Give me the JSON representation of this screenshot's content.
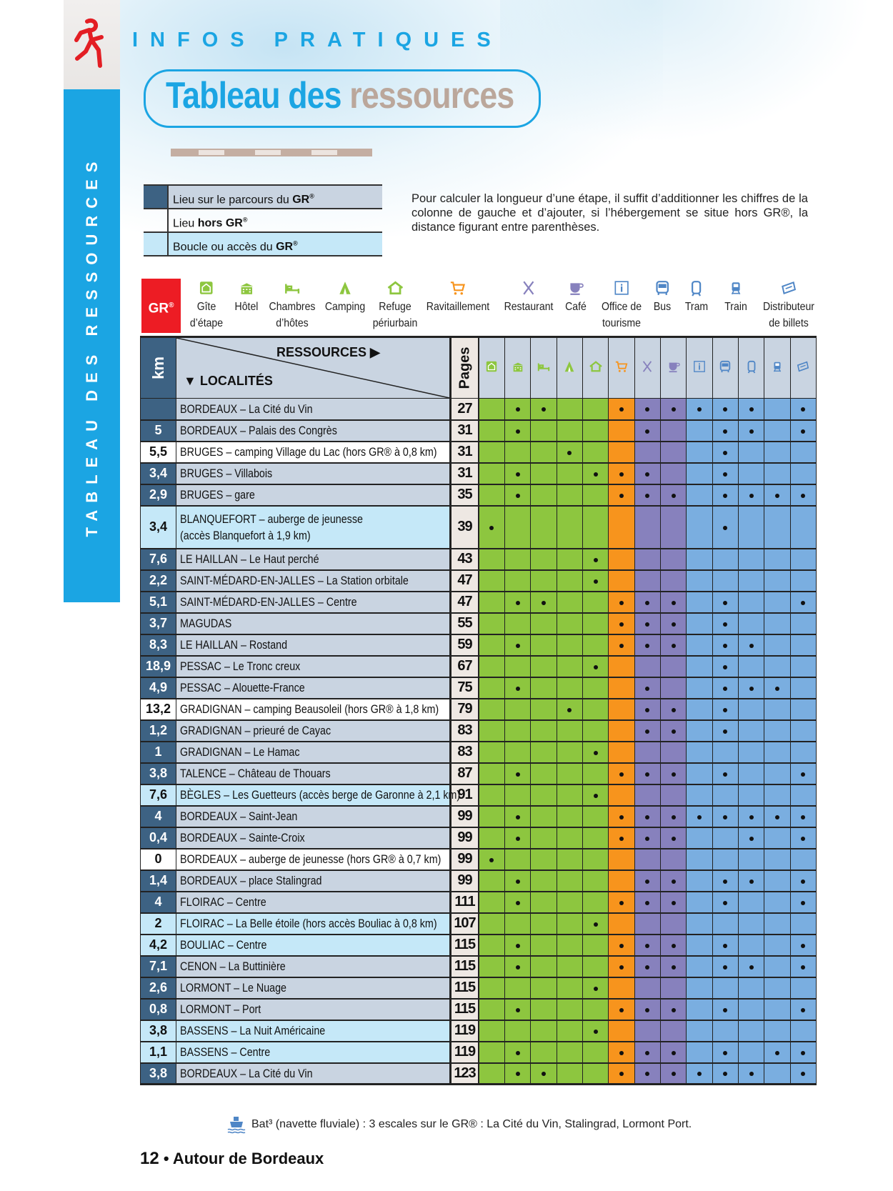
{
  "sidebar": {
    "label": "TABLEAU DES RESSOURCES",
    "logo_icon": "walker-icon"
  },
  "header": {
    "kicker": "INFOS PRATIQUES",
    "title_part1": "Tableau des",
    "title_part2": "ressources"
  },
  "legend": [
    {
      "type": "on",
      "text": "Lieu sur le parcours du ",
      "bold": "GR",
      "sup": "®"
    },
    {
      "type": "hors",
      "text": "Lieu ",
      "bold": "hors GR",
      "sup": "®"
    },
    {
      "type": "acces",
      "text": "Boucle ou accès du ",
      "bold": "GR",
      "sup": "®"
    }
  ],
  "intro": "Pour calculer la longueur d’une étape, il suffit d’additionner les chiffres de la colonne de gauche et d’ajouter, si l’hébergement se situe hors GR®, la distance figurant entre parenthèses.",
  "gr_badge": {
    "text": "GR",
    "sup": "®"
  },
  "resources": [
    {
      "label": "Gîte\nd’étape",
      "icon": "gite-icon",
      "color": "#8dc63f"
    },
    {
      "label": "Hôtel",
      "icon": "hotel-icon",
      "color": "#8dc63f"
    },
    {
      "label": "Chambres\nd’hôtes",
      "icon": "bed-icon",
      "color": "#8dc63f"
    },
    {
      "label": "Camping",
      "icon": "tent-icon",
      "color": "#8dc63f"
    },
    {
      "label": "Refuge\npériurbain",
      "icon": "refuge-icon",
      "color": "#8dc63f"
    },
    {
      "label": "Ravitaillement",
      "icon": "cart-icon",
      "color": "#f7941d"
    },
    {
      "label": "Restaurant",
      "icon": "cutlery-icon",
      "color": "#8781bd"
    },
    {
      "label": "Café",
      "icon": "cup-icon",
      "color": "#8781bd"
    },
    {
      "label": "Office de\ntourisme",
      "icon": "info-icon",
      "color": "#4f86c6"
    },
    {
      "label": "Bus",
      "icon": "bus-icon",
      "color": "#4f86c6"
    },
    {
      "label": "Tram",
      "icon": "tram-icon",
      "color": "#4f86c6"
    },
    {
      "label": "Train",
      "icon": "train-icon",
      "color": "#4f86c6"
    },
    {
      "label": "Distributeur\nde billets",
      "icon": "ticket-icon",
      "color": "#4f86c6"
    }
  ],
  "column_colors": [
    "#8dc63f",
    "#8dc63f",
    "#8dc63f",
    "#8dc63f",
    "#8dc63f",
    "#f7941d",
    "#8781bd",
    "#8781bd",
    "#7aaee0",
    "#7aaee0",
    "#7aaee0",
    "#7aaee0",
    "#7aaee0"
  ],
  "table": {
    "km_header": "km",
    "ressources_header": "RESSOURCES",
    "localites_header": "LOCALITÉS",
    "pages_header": "Pages",
    "rows": [
      {
        "km": "",
        "name": "BORDEAUX – La Cité du Vin",
        "page": "27",
        "type": "gr",
        "res": [
          0,
          1,
          1,
          0,
          0,
          1,
          1,
          1,
          1,
          1,
          1,
          0,
          1
        ]
      },
      {
        "km": "5",
        "name": "BORDEAUX – Palais des Congrès",
        "page": "31",
        "type": "gr",
        "res": [
          0,
          1,
          0,
          0,
          0,
          0,
          1,
          0,
          0,
          1,
          1,
          0,
          1
        ]
      },
      {
        "km": "5,5",
        "name": "BRUGES – camping Village du Lac (hors GR® à 0,8 km)",
        "page": "31",
        "type": "hors",
        "res": [
          0,
          0,
          0,
          1,
          0,
          0,
          0,
          0,
          0,
          1,
          0,
          0,
          0
        ]
      },
      {
        "km": "3,4",
        "name": "BRUGES – Villabois",
        "page": "31",
        "type": "gr",
        "res": [
          0,
          1,
          0,
          0,
          1,
          1,
          1,
          0,
          0,
          1,
          0,
          0,
          0
        ]
      },
      {
        "km": "2,9",
        "name": "BRUGES – gare",
        "page": "35",
        "type": "gr",
        "res": [
          0,
          1,
          0,
          0,
          0,
          1,
          1,
          1,
          0,
          1,
          1,
          1,
          1
        ]
      },
      {
        "km": "3,4",
        "name": "BLANQUEFORT – auberge de jeunesse\n(accès Blanquefort à 1,9 km)",
        "page": "39",
        "type": "acces",
        "res": [
          1,
          0,
          0,
          0,
          0,
          0,
          0,
          0,
          0,
          1,
          0,
          0,
          0
        ]
      },
      {
        "km": "7,6",
        "name": "LE HAILLAN – Le Haut perché",
        "page": "43",
        "type": "gr",
        "res": [
          0,
          0,
          0,
          0,
          1,
          0,
          0,
          0,
          0,
          0,
          0,
          0,
          0
        ]
      },
      {
        "km": "2,2",
        "name": "SAINT-MÉDARD-EN-JALLES – La Station orbitale",
        "page": "47",
        "type": "gr",
        "res": [
          0,
          0,
          0,
          0,
          1,
          0,
          0,
          0,
          0,
          0,
          0,
          0,
          0
        ]
      },
      {
        "km": "5,1",
        "name": "SAINT-MÉDARD-EN-JALLES – Centre",
        "page": "47",
        "type": "gr",
        "res": [
          0,
          1,
          1,
          0,
          0,
          1,
          1,
          1,
          0,
          1,
          0,
          0,
          1
        ]
      },
      {
        "km": "3,7",
        "name": "MAGUDAS",
        "page": "55",
        "type": "gr",
        "res": [
          0,
          0,
          0,
          0,
          0,
          1,
          1,
          1,
          0,
          1,
          0,
          0,
          0
        ]
      },
      {
        "km": "8,3",
        "name": "LE HAILLAN – Rostand",
        "page": "59",
        "type": "gr",
        "res": [
          0,
          1,
          0,
          0,
          0,
          1,
          1,
          1,
          0,
          1,
          1,
          0,
          0
        ]
      },
      {
        "km": "18,9",
        "name": "PESSAC – Le Tronc creux",
        "page": "67",
        "type": "gr",
        "res": [
          0,
          0,
          0,
          0,
          1,
          0,
          0,
          0,
          0,
          1,
          0,
          0,
          0
        ]
      },
      {
        "km": "4,9",
        "name": "PESSAC – Alouette-France",
        "page": "75",
        "type": "gr",
        "res": [
          0,
          1,
          0,
          0,
          0,
          0,
          1,
          0,
          0,
          1,
          1,
          1,
          0
        ]
      },
      {
        "km": "13,2",
        "name": "GRADIGNAN – camping Beausoleil (hors GR® à 1,8 km)",
        "page": "79",
        "type": "hors",
        "res": [
          0,
          0,
          0,
          1,
          0,
          0,
          1,
          1,
          0,
          1,
          0,
          0,
          0
        ]
      },
      {
        "km": "1,2",
        "name": "GRADIGNAN – prieuré de Cayac",
        "page": "83",
        "type": "gr",
        "res": [
          0,
          0,
          0,
          0,
          0,
          0,
          1,
          1,
          0,
          1,
          0,
          0,
          0
        ]
      },
      {
        "km": "1",
        "name": "GRADIGNAN – Le Hamac",
        "page": "83",
        "type": "gr",
        "res": [
          0,
          0,
          0,
          0,
          1,
          0,
          0,
          0,
          0,
          0,
          0,
          0,
          0
        ]
      },
      {
        "km": "3,8",
        "name": "TALENCE – Château de Thouars",
        "page": "87",
        "type": "gr",
        "res": [
          0,
          1,
          0,
          0,
          0,
          1,
          1,
          1,
          0,
          1,
          0,
          0,
          1
        ]
      },
      {
        "km": "7,6",
        "name": "BÈGLES – Les Guetteurs (accès berge de Garonne à 2,1 km)",
        "page": "91",
        "type": "acces",
        "res": [
          0,
          0,
          0,
          0,
          1,
          0,
          0,
          0,
          0,
          0,
          0,
          0,
          0
        ]
      },
      {
        "km": "4",
        "name": "BORDEAUX – Saint-Jean",
        "page": "99",
        "type": "gr",
        "res": [
          0,
          1,
          0,
          0,
          0,
          1,
          1,
          1,
          1,
          1,
          1,
          1,
          1
        ]
      },
      {
        "km": "0,4",
        "name": "BORDEAUX – Sainte-Croix",
        "page": "99",
        "type": "gr",
        "res": [
          0,
          1,
          0,
          0,
          0,
          1,
          1,
          1,
          0,
          0,
          1,
          0,
          1
        ]
      },
      {
        "km": "0",
        "name": "BORDEAUX – auberge de jeunesse (hors GR® à 0,7 km)",
        "page": "99",
        "type": "hors",
        "res": [
          1,
          0,
          0,
          0,
          0,
          0,
          0,
          0,
          0,
          0,
          0,
          0,
          0
        ]
      },
      {
        "km": "1,4",
        "name": "BORDEAUX – place Stalingrad",
        "page": "99",
        "type": "gr",
        "res": [
          0,
          1,
          0,
          0,
          0,
          0,
          1,
          1,
          0,
          1,
          1,
          0,
          1
        ]
      },
      {
        "km": "4",
        "name": "FLOIRAC – Centre",
        "page": "111",
        "type": "gr",
        "res": [
          0,
          1,
          0,
          0,
          0,
          1,
          1,
          1,
          0,
          1,
          0,
          0,
          1
        ]
      },
      {
        "km": "2",
        "name": "FLOIRAC – La Belle étoile (hors accès Bouliac à 0,8 km)",
        "page": "107",
        "type": "acces",
        "res": [
          0,
          0,
          0,
          0,
          1,
          0,
          0,
          0,
          0,
          0,
          0,
          0,
          0
        ]
      },
      {
        "km": "4,2",
        "name": "BOULIAC – Centre",
        "page": "115",
        "type": "acces",
        "res": [
          0,
          1,
          0,
          0,
          0,
          1,
          1,
          1,
          0,
          1,
          0,
          0,
          1
        ]
      },
      {
        "km": "7,1",
        "name": "CENON – La Buttinière",
        "page": "115",
        "type": "gr",
        "res": [
          0,
          1,
          0,
          0,
          0,
          1,
          1,
          1,
          0,
          1,
          1,
          0,
          1
        ]
      },
      {
        "km": "2,6",
        "name": "LORMONT – Le Nuage",
        "page": "115",
        "type": "gr",
        "res": [
          0,
          0,
          0,
          0,
          1,
          0,
          0,
          0,
          0,
          0,
          0,
          0,
          0
        ]
      },
      {
        "km": "0,8",
        "name": "LORMONT – Port",
        "page": "115",
        "type": "gr",
        "res": [
          0,
          1,
          0,
          0,
          0,
          1,
          1,
          1,
          0,
          1,
          0,
          0,
          1
        ]
      },
      {
        "km": "3,8",
        "name": "BASSENS – La Nuit Américaine",
        "page": "119",
        "type": "acces",
        "res": [
          0,
          0,
          0,
          0,
          1,
          0,
          0,
          0,
          0,
          0,
          0,
          0,
          0
        ]
      },
      {
        "km": "1,1",
        "name": "BASSENS – Centre",
        "page": "119",
        "type": "acces",
        "res": [
          0,
          1,
          0,
          0,
          0,
          1,
          1,
          1,
          0,
          1,
          0,
          1,
          1
        ]
      },
      {
        "km": "3,8",
        "name": "BORDEAUX – La Cité du Vin",
        "page": "123",
        "type": "gr",
        "res": [
          0,
          1,
          1,
          0,
          0,
          1,
          1,
          1,
          1,
          1,
          1,
          0,
          1
        ]
      }
    ]
  },
  "footnote": {
    "icon": "boat-icon",
    "text": "Bat³ (navette fluviale) : 3 escales sur le GR® : La Cité du Vin, Stalingrad, Lormont Port."
  },
  "footer": {
    "page": "12",
    "separator": "•",
    "title": "Autour de Bordeaux"
  }
}
